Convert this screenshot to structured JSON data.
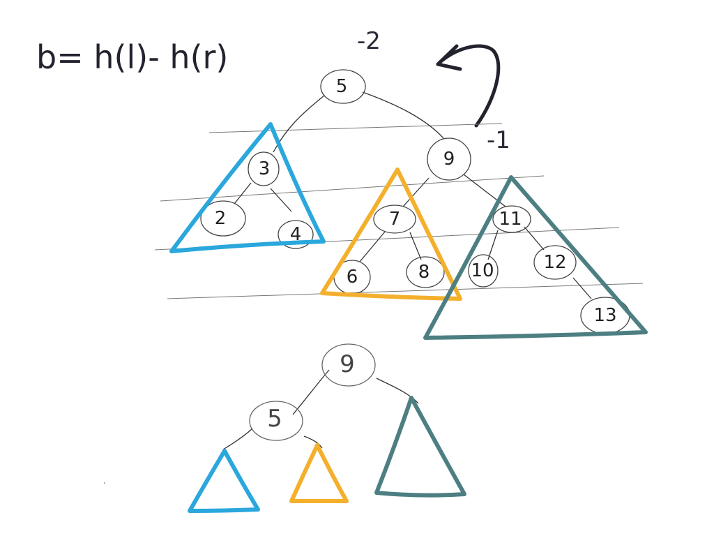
{
  "formula": "b= h(l)- h(r)",
  "annotations": {
    "root_balance": "-2",
    "child_balance": "-1"
  },
  "colors": {
    "ink": "#23232f",
    "blue": "#2aa7dc",
    "orange": "#f4b02c",
    "teal": "#4d7f82",
    "node_stroke": "#555555",
    "guide": "#777777"
  },
  "tree_before": {
    "nodes": [
      "5",
      "3",
      "2",
      "4",
      "9",
      "7",
      "6",
      "8",
      "11",
      "10",
      "12",
      "13"
    ]
  },
  "tree_after": {
    "nodes": [
      "9",
      "5"
    ]
  }
}
